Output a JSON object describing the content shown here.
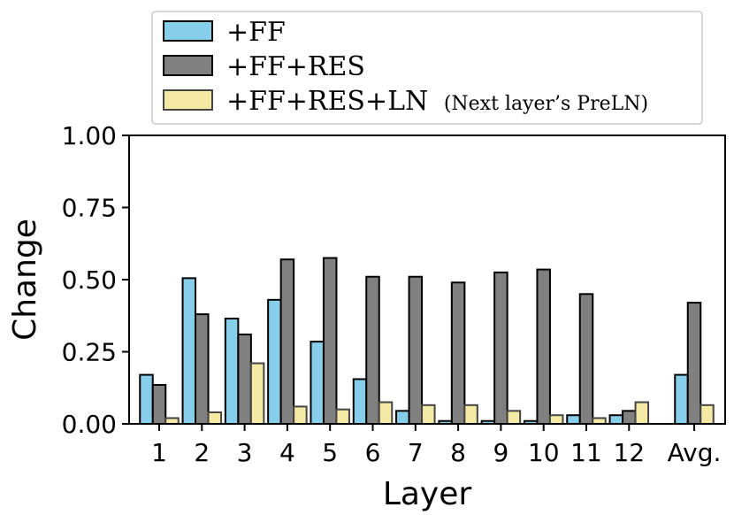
{
  "chart_data": {
    "type": "bar",
    "categories": [
      "1",
      "2",
      "3",
      "4",
      "5",
      "6",
      "7",
      "8",
      "9",
      "10",
      "11",
      "12",
      "Avg."
    ],
    "series": [
      {
        "name": "+FF",
        "color": "#87ceeb",
        "values": [
          0.17,
          0.505,
          0.365,
          0.43,
          0.285,
          0.155,
          0.045,
          0.01,
          0.01,
          0.01,
          0.03,
          0.03,
          0.17
        ]
      },
      {
        "name": "+FF+RES",
        "color": "#808080",
        "values": [
          0.135,
          0.38,
          0.31,
          0.57,
          0.575,
          0.51,
          0.51,
          0.49,
          0.525,
          0.535,
          0.45,
          0.045,
          0.42
        ]
      },
      {
        "name": "+FF+RES+LN",
        "name_note": "(Next layer’s PreLN)",
        "color": "#f5e9a6",
        "values": [
          0.02,
          0.04,
          0.21,
          0.06,
          0.05,
          0.075,
          0.065,
          0.065,
          0.045,
          0.03,
          0.02,
          0.075,
          0.065
        ]
      }
    ],
    "yticks": [
      "0.00",
      "0.25",
      "0.50",
      "0.75",
      "1.00"
    ],
    "ylim": [
      0,
      1
    ],
    "xlabel": "Layer",
    "ylabel": "Change",
    "grid": false,
    "legend_position": "top"
  }
}
